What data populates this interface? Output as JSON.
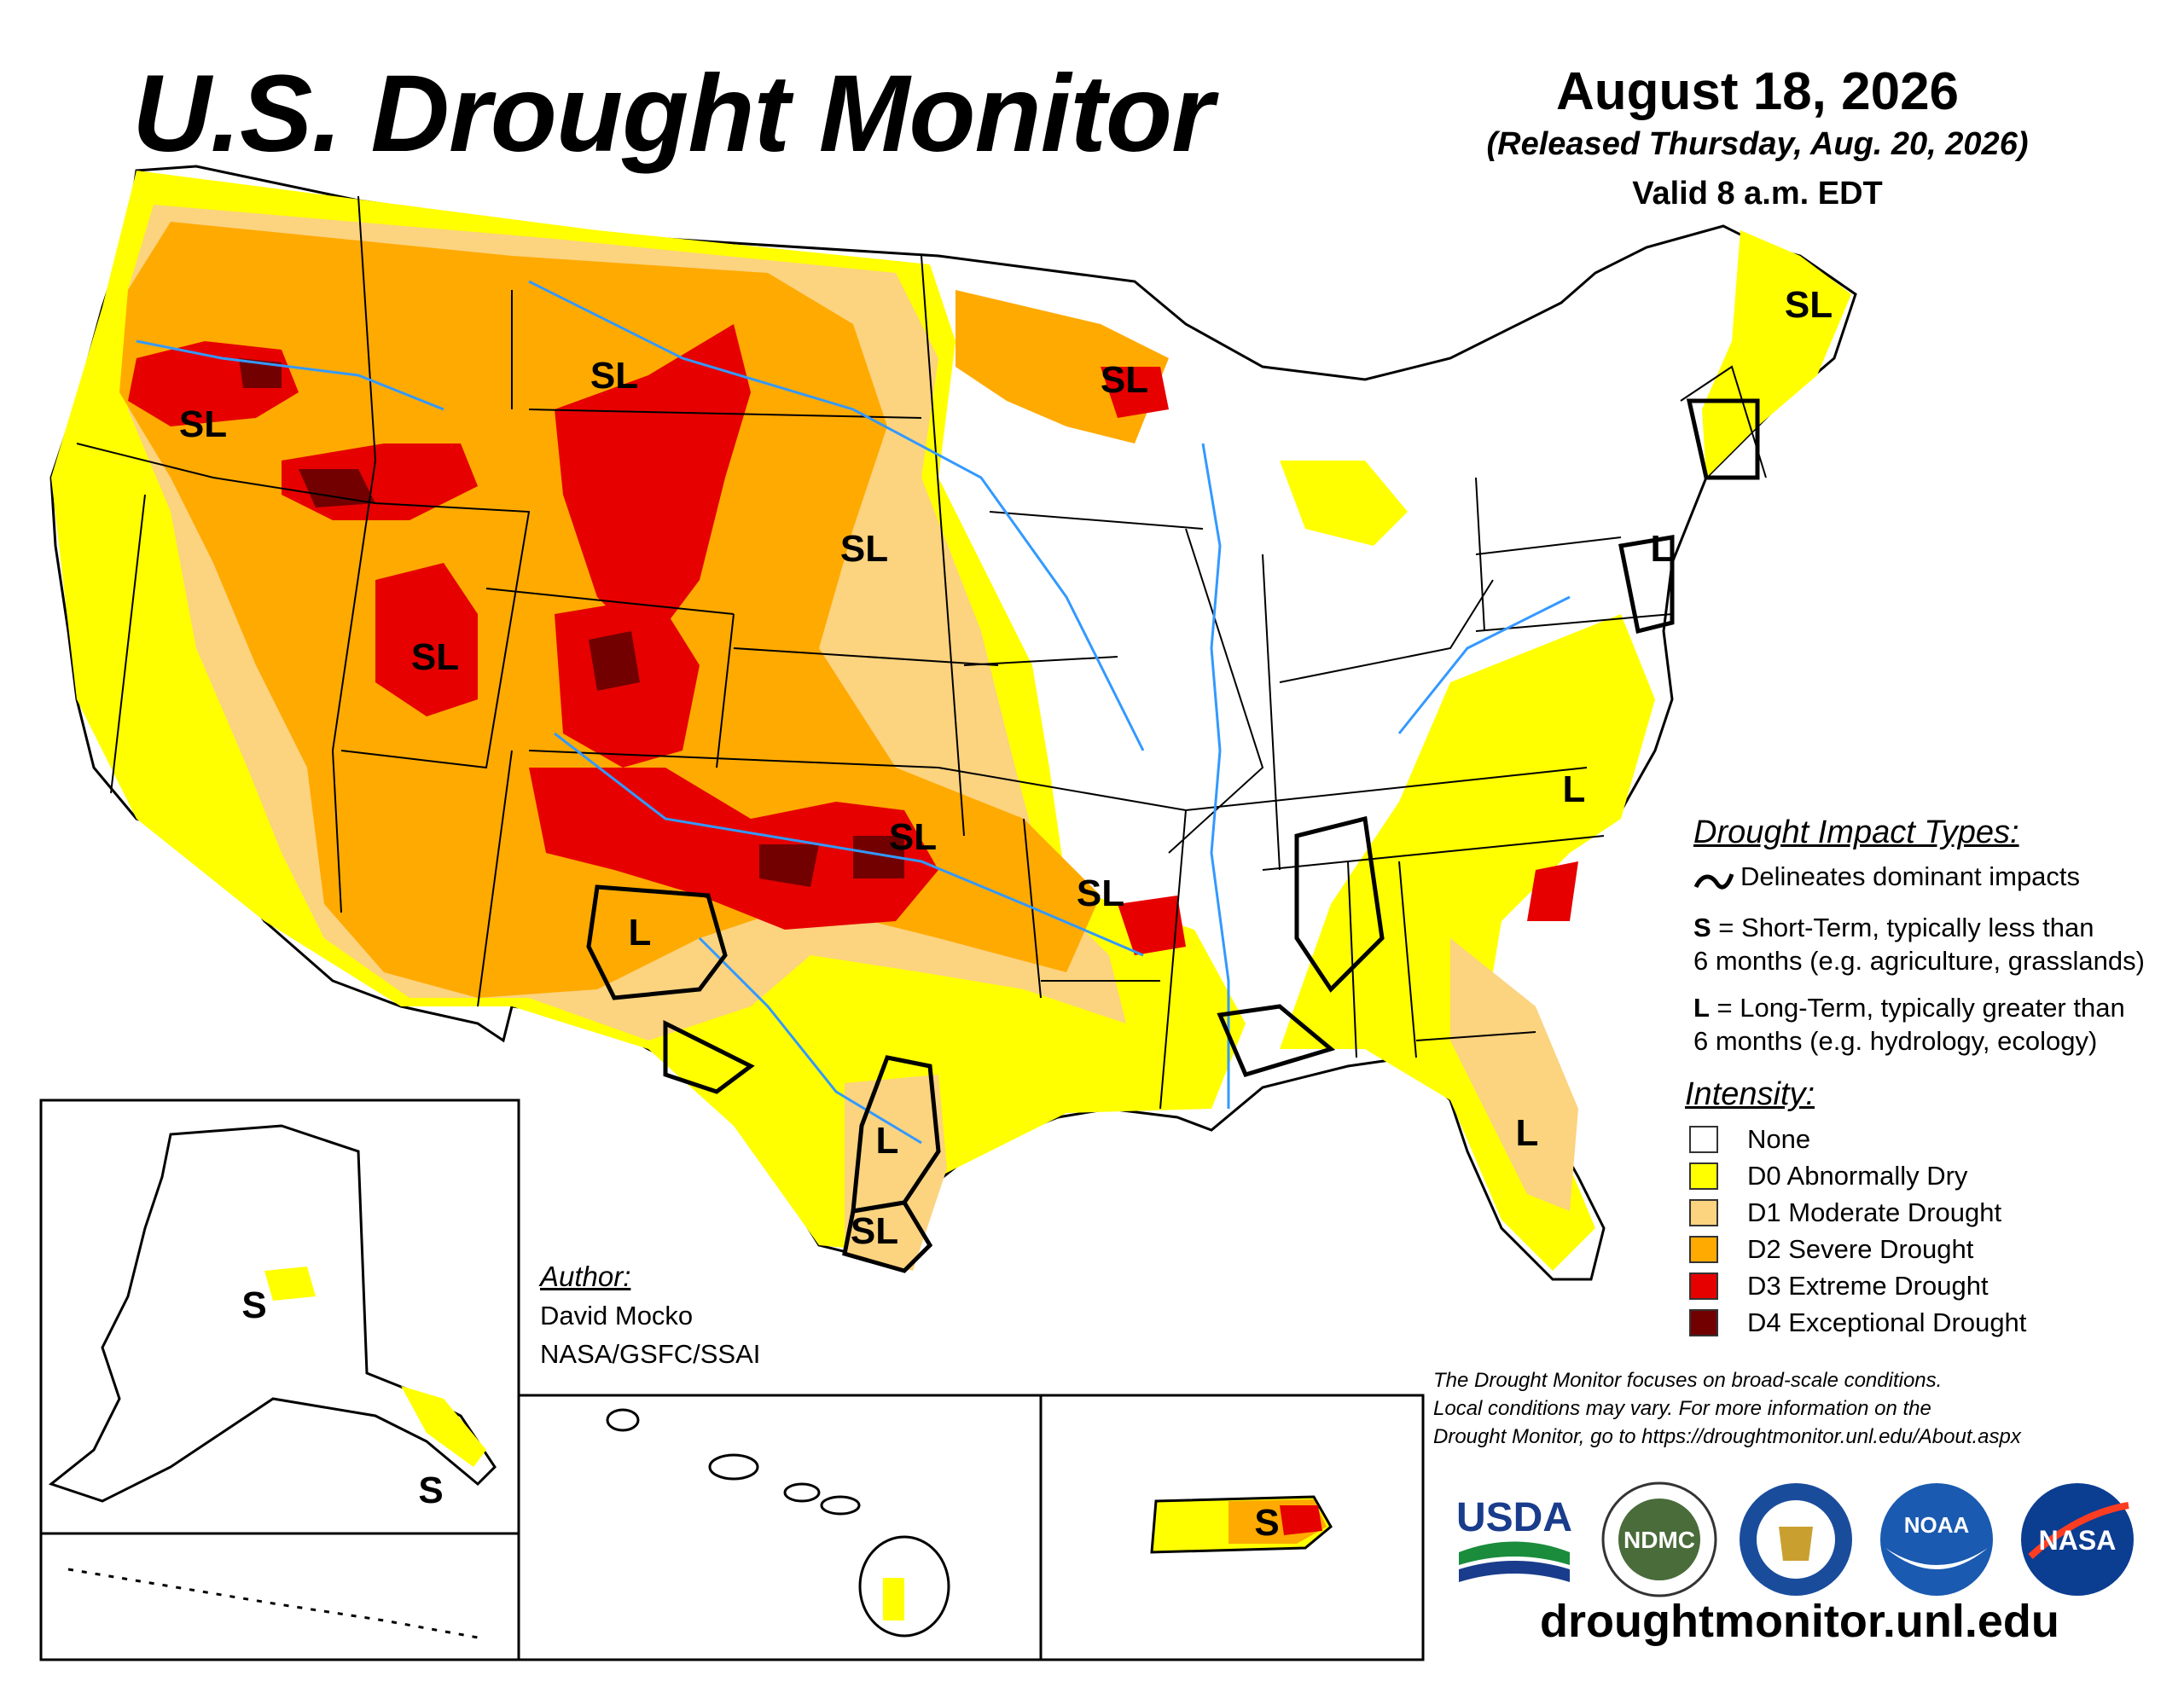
{
  "header": {
    "title": "U.S. Drought Monitor",
    "date": "August 18, 2026",
    "released": "(Released Thursday, Aug. 20, 2026)",
    "valid": "Valid 8 a.m. EDT"
  },
  "map_labels": {
    "washington_oregon": "SL",
    "montana": "SL",
    "minnesota_wisconsin": "SL",
    "maine": "SL",
    "nebraska": "SL",
    "utah": "SL",
    "oklahoma": "SL",
    "arkansas": "SL",
    "new_mexico": "L",
    "texas_central": "L",
    "texas_south": "SL",
    "new_jersey": "L",
    "north_carolina": "L",
    "florida": "L",
    "alaska_interior": "S",
    "alaska_southeast": "S",
    "puerto_rico": "S"
  },
  "impact": {
    "title": "Drought Impact Types:",
    "line_desc": "Delineates dominant impacts",
    "s_key": "S",
    "s_desc": " = Short-Term, typically less than",
    "s_desc2": "6 months (e.g. agriculture, grasslands)",
    "l_key": "L",
    "l_desc": " = Long-Term, typically greater than",
    "l_desc2": "6 months (e.g. hydrology, ecology)"
  },
  "intensity": {
    "title": "Intensity:",
    "items": [
      {
        "label": "None",
        "color": "#ffffff"
      },
      {
        "label": "D0 Abnormally Dry",
        "color": "#ffff00"
      },
      {
        "label": "D1 Moderate Drought",
        "color": "#fcd37f"
      },
      {
        "label": "D2 Severe Drought",
        "color": "#ffaa00"
      },
      {
        "label": "D3 Extreme Drought",
        "color": "#e60000"
      },
      {
        "label": "D4 Exceptional Drought",
        "color": "#730000"
      }
    ]
  },
  "author": {
    "title": "Author:",
    "name": "David Mocko",
    "org": "NASA/GSFC/SSAI"
  },
  "note": {
    "line1": "The Drought Monitor focuses on broad-scale conditions.",
    "line2": "Local conditions may vary. For more information on the",
    "line3": "Drought Monitor, go to https://droughtmonitor.unl.edu/About.aspx"
  },
  "logos": {
    "usda": "USDA",
    "ndmc": "NDMC",
    "noaa": "NOAA",
    "nasa": "NASA"
  },
  "url": "droughtmonitor.unl.edu"
}
